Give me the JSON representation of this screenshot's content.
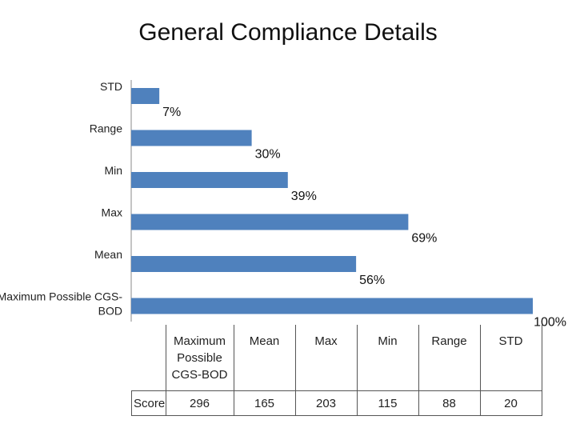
{
  "chart_data": {
    "type": "bar",
    "orientation": "horizontal",
    "title": "General Compliance Details",
    "categories": [
      "STD",
      "Range",
      "Min",
      "Max",
      "Mean",
      "Maximum Possible CGS-BOD"
    ],
    "category_label_lines": [
      [
        "STD"
      ],
      [
        "Range"
      ],
      [
        "Min"
      ],
      [
        "Max"
      ],
      [
        "Mean"
      ],
      [
        "Maximum Possible CGS-",
        "BOD"
      ]
    ],
    "values": [
      7,
      30,
      39,
      69,
      56,
      100
    ],
    "value_labels": [
      "7%",
      "30%",
      "39%",
      "69%",
      "56%",
      "100%"
    ],
    "xlim": [
      0,
      100
    ],
    "bar_color": "#4f81bd",
    "grid": false,
    "legend": "none"
  },
  "table": {
    "columns": [
      {
        "header_lines": [
          "Maximum",
          "Possible",
          "CGS-BOD"
        ],
        "value": "296"
      },
      {
        "header_lines": [
          "Mean"
        ],
        "value": "165"
      },
      {
        "header_lines": [
          "Max"
        ],
        "value": "203"
      },
      {
        "header_lines": [
          "Min"
        ],
        "value": "115"
      },
      {
        "header_lines": [
          "Range"
        ],
        "value": "88"
      },
      {
        "header_lines": [
          "STD"
        ],
        "value": "20"
      }
    ],
    "row_label": "Score"
  }
}
